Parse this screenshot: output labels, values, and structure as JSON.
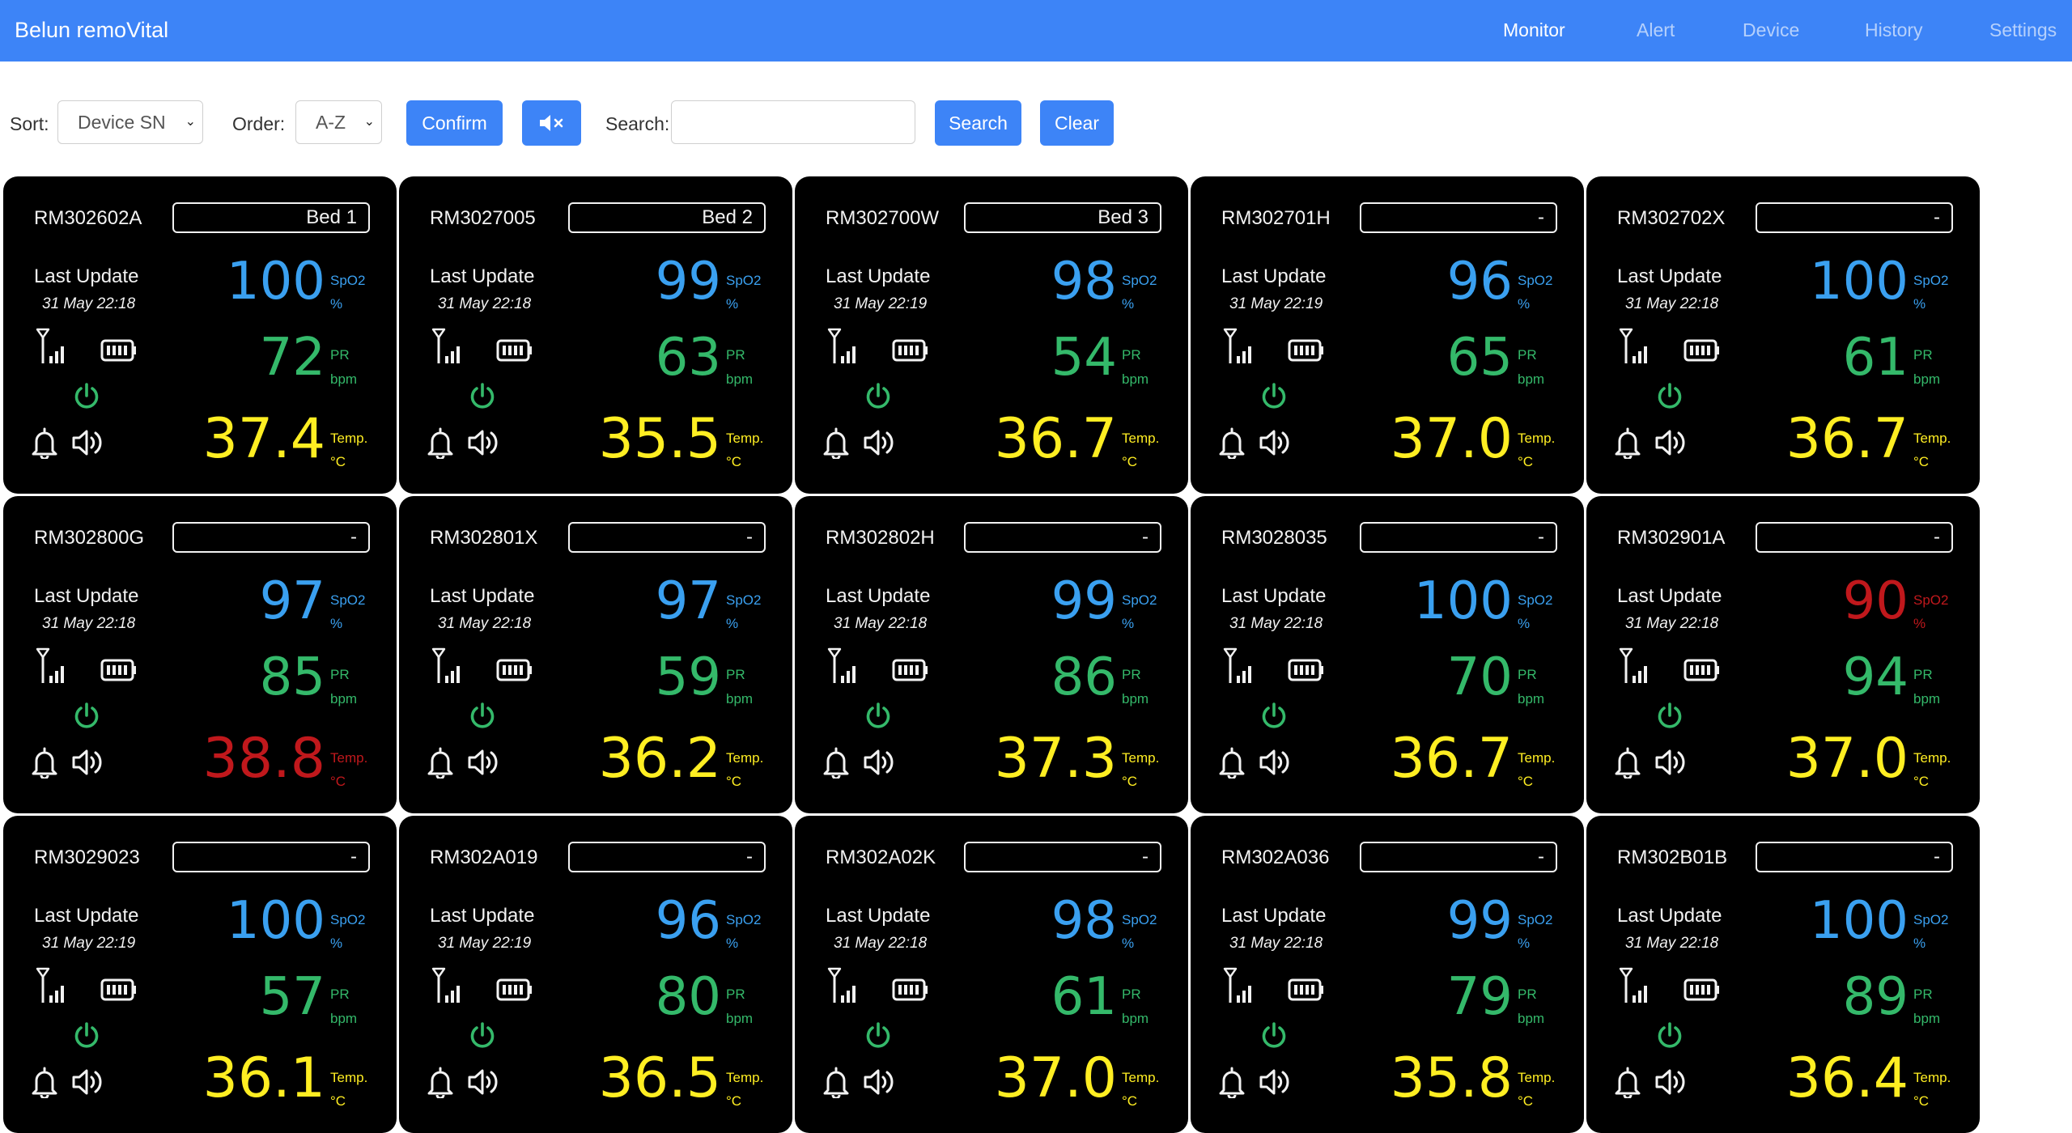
{
  "app": {
    "title": "Belun remoVital"
  },
  "nav": [
    {
      "label": "Monitor",
      "active": true
    },
    {
      "label": "Alert",
      "active": false
    },
    {
      "label": "Device",
      "active": false
    },
    {
      "label": "History",
      "active": false
    },
    {
      "label": "Settings",
      "active": false
    }
  ],
  "controls": {
    "sort_label": "Sort:",
    "sort_value": "Device SN",
    "order_label": "Order:",
    "order_value": "A-Z",
    "confirm_label": "Confirm",
    "mute_icon": "volume-mute-icon",
    "search_label": "Search:",
    "search_value": "",
    "search_button": "Search",
    "clear_button": "Clear"
  },
  "card_labels": {
    "last_update": "Last Update",
    "spo2_unit_top": "SpO2",
    "spo2_unit_bottom": "%",
    "pr_unit_top": "PR",
    "pr_unit_bottom": "bpm",
    "temp_unit_top": "Temp.",
    "temp_unit_bottom": "°C"
  },
  "icons": [
    "signal-icon",
    "battery-icon",
    "power-icon",
    "bell-icon",
    "speaker-icon"
  ],
  "colors": {
    "navbar": "#3d84f7",
    "spo2_normal": "#3aa0f0",
    "pr_normal": "#34b96a",
    "temp_normal": "#ffee22",
    "alert": "#c0181c",
    "power_icon": "#34b96a"
  },
  "devices": [
    {
      "sn": "RM302602A",
      "bed": "Bed 1",
      "time": "31 May 22:18",
      "spo2": "100",
      "pr": "72",
      "temp": "37.4",
      "spo2_alert": false,
      "temp_alert": false
    },
    {
      "sn": "RM3027005",
      "bed": "Bed 2",
      "time": "31 May 22:18",
      "spo2": "99",
      "pr": "63",
      "temp": "35.5",
      "spo2_alert": false,
      "temp_alert": false
    },
    {
      "sn": "RM302700W",
      "bed": "Bed 3",
      "time": "31 May 22:19",
      "spo2": "98",
      "pr": "54",
      "temp": "36.7",
      "spo2_alert": false,
      "temp_alert": false
    },
    {
      "sn": "RM302701H",
      "bed": "-",
      "time": "31 May 22:19",
      "spo2": "96",
      "pr": "65",
      "temp": "37.0",
      "spo2_alert": false,
      "temp_alert": false
    },
    {
      "sn": "RM302702X",
      "bed": "-",
      "time": "31 May 22:18",
      "spo2": "100",
      "pr": "61",
      "temp": "36.7",
      "spo2_alert": false,
      "temp_alert": false
    },
    {
      "sn": "RM302800G",
      "bed": "-",
      "time": "31 May 22:18",
      "spo2": "97",
      "pr": "85",
      "temp": "38.8",
      "spo2_alert": false,
      "temp_alert": true
    },
    {
      "sn": "RM302801X",
      "bed": "-",
      "time": "31 May 22:18",
      "spo2": "97",
      "pr": "59",
      "temp": "36.2",
      "spo2_alert": false,
      "temp_alert": false
    },
    {
      "sn": "RM302802H",
      "bed": "-",
      "time": "31 May 22:18",
      "spo2": "99",
      "pr": "86",
      "temp": "37.3",
      "spo2_alert": false,
      "temp_alert": false
    },
    {
      "sn": "RM3028035",
      "bed": "-",
      "time": "31 May 22:18",
      "spo2": "100",
      "pr": "70",
      "temp": "36.7",
      "spo2_alert": false,
      "temp_alert": false
    },
    {
      "sn": "RM302901A",
      "bed": "-",
      "time": "31 May 22:18",
      "spo2": "90",
      "pr": "94",
      "temp": "37.0",
      "spo2_alert": true,
      "temp_alert": false
    },
    {
      "sn": "RM3029023",
      "bed": "-",
      "time": "31 May 22:19",
      "spo2": "100",
      "pr": "57",
      "temp": "36.1",
      "spo2_alert": false,
      "temp_alert": false
    },
    {
      "sn": "RM302A019",
      "bed": "-",
      "time": "31 May 22:19",
      "spo2": "96",
      "pr": "80",
      "temp": "36.5",
      "spo2_alert": false,
      "temp_alert": false
    },
    {
      "sn": "RM302A02K",
      "bed": "-",
      "time": "31 May 22:18",
      "spo2": "98",
      "pr": "61",
      "temp": "37.0",
      "spo2_alert": false,
      "temp_alert": false
    },
    {
      "sn": "RM302A036",
      "bed": "-",
      "time": "31 May 22:18",
      "spo2": "99",
      "pr": "79",
      "temp": "35.8",
      "spo2_alert": false,
      "temp_alert": false
    },
    {
      "sn": "RM302B01B",
      "bed": "-",
      "time": "31 May 22:18",
      "spo2": "100",
      "pr": "89",
      "temp": "36.4",
      "spo2_alert": false,
      "temp_alert": false
    }
  ]
}
